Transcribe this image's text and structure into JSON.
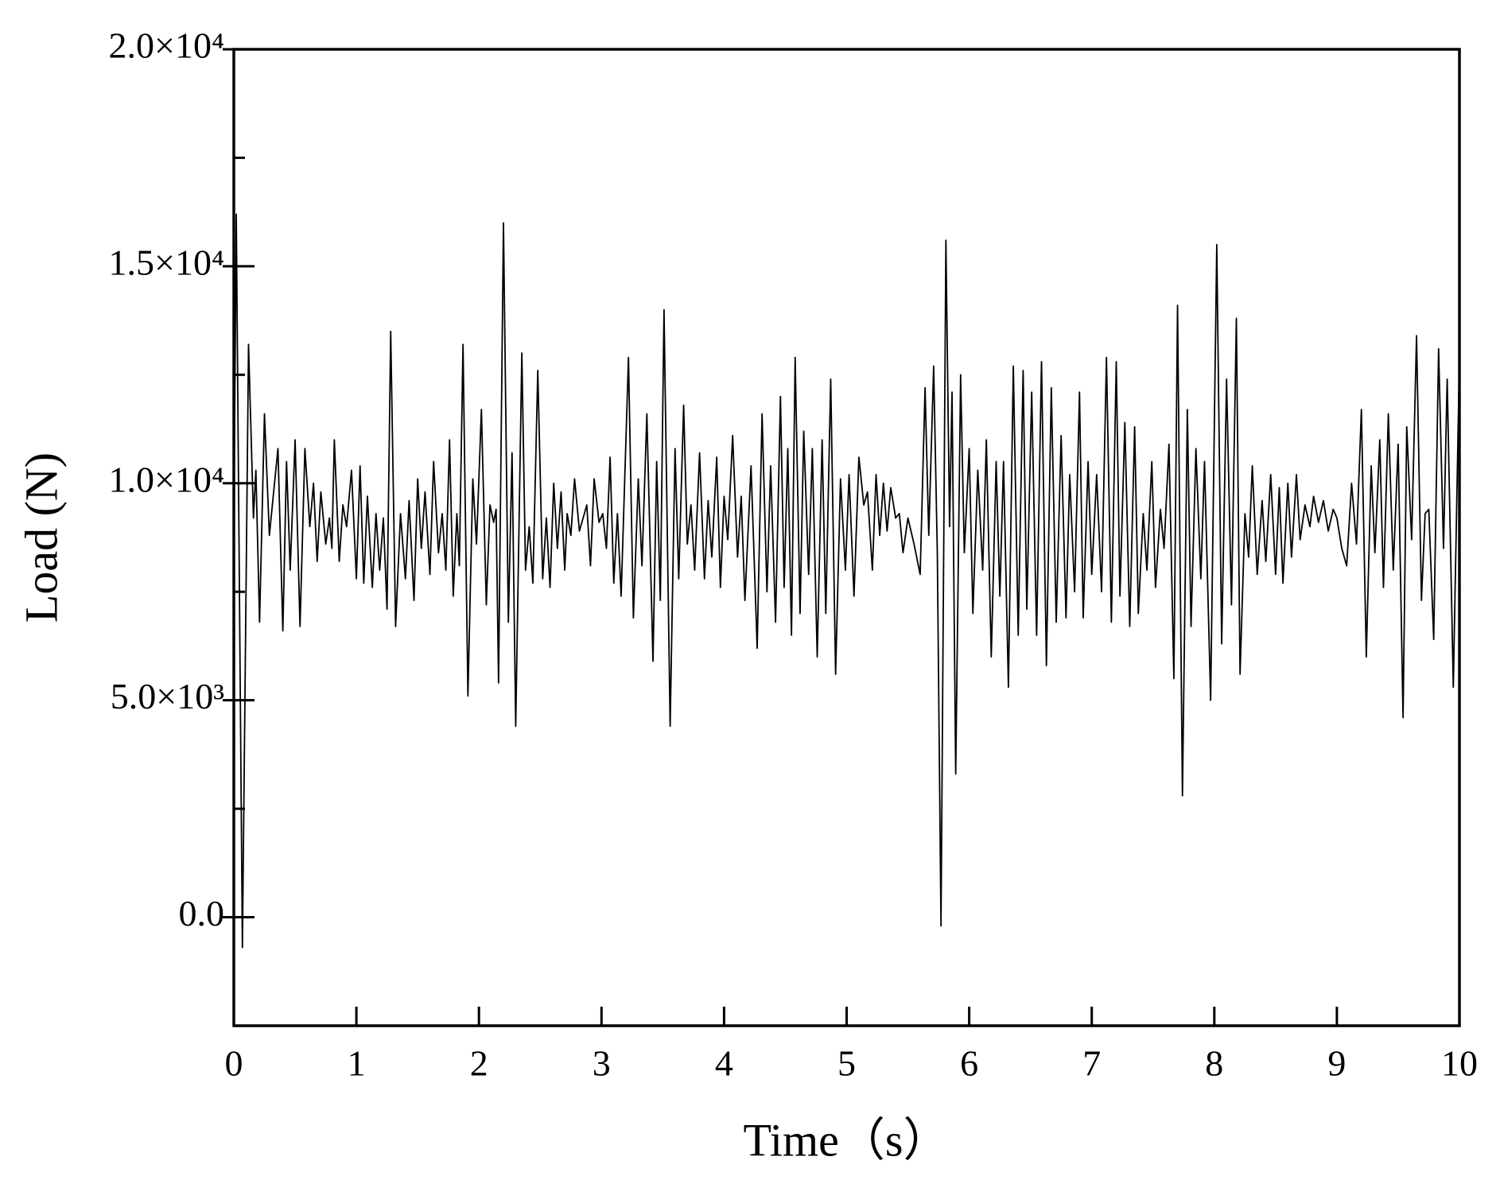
{
  "chart_data": {
    "type": "line",
    "xlabel": "Time（s）",
    "ylabel": "Load (N)",
    "xlim": [
      0,
      10
    ],
    "xticks": [
      0,
      1,
      2,
      3,
      4,
      5,
      6,
      7,
      8,
      9,
      10
    ],
    "ylim": [
      -2500,
      20000
    ],
    "yticks": [
      {
        "value": 0,
        "label": "0.0"
      },
      {
        "value": 5000,
        "label": "5.0×10³"
      },
      {
        "value": 10000,
        "label": "1.0×10⁴"
      },
      {
        "value": 15000,
        "label": "1.5×10⁴"
      },
      {
        "value": 20000,
        "label": "2.0×10⁴"
      }
    ],
    "yminorticks": [
      2500,
      7500,
      12500,
      17500
    ],
    "color": "#000000",
    "x": [
      0,
      0.02,
      0.07,
      0.12,
      0.16,
      0.18,
      0.21,
      0.25,
      0.29,
      0.36,
      0.4,
      0.43,
      0.46,
      0.5,
      0.54,
      0.58,
      0.62,
      0.65,
      0.68,
      0.71,
      0.75,
      0.78,
      0.8,
      0.82,
      0.86,
      0.89,
      0.92,
      0.96,
      1.0,
      1.03,
      1.06,
      1.09,
      1.13,
      1.16,
      1.19,
      1.22,
      1.25,
      1.28,
      1.32,
      1.36,
      1.4,
      1.43,
      1.47,
      1.5,
      1.53,
      1.56,
      1.6,
      1.63,
      1.67,
      1.7,
      1.73,
      1.76,
      1.79,
      1.82,
      1.84,
      1.87,
      1.91,
      1.95,
      1.98,
      2.02,
      2.06,
      2.09,
      2.12,
      2.14,
      2.16,
      2.2,
      2.24,
      2.27,
      2.3,
      2.35,
      2.38,
      2.41,
      2.44,
      2.48,
      2.52,
      2.55,
      2.58,
      2.61,
      2.64,
      2.67,
      2.7,
      2.72,
      2.75,
      2.78,
      2.82,
      2.85,
      2.88,
      2.91,
      2.94,
      2.98,
      3.01,
      3.04,
      3.07,
      3.1,
      3.13,
      3.16,
      3.22,
      3.26,
      3.3,
      3.33,
      3.37,
      3.42,
      3.45,
      3.48,
      3.51,
      3.56,
      3.6,
      3.63,
      3.67,
      3.7,
      3.73,
      3.76,
      3.8,
      3.84,
      3.87,
      3.9,
      3.94,
      3.97,
      4.0,
      4.03,
      4.07,
      4.11,
      4.14,
      4.17,
      4.22,
      4.27,
      4.31,
      4.35,
      4.38,
      4.42,
      4.46,
      4.49,
      4.52,
      4.55,
      4.58,
      4.62,
      4.65,
      4.69,
      4.72,
      4.76,
      4.8,
      4.83,
      4.87,
      4.91,
      4.95,
      4.99,
      5.02,
      5.06,
      5.1,
      5.14,
      5.17,
      5.21,
      5.24,
      5.27,
      5.3,
      5.33,
      5.36,
      5.4,
      5.43,
      5.46,
      5.5,
      5.55,
      5.6,
      5.64,
      5.67,
      5.71,
      5.74,
      5.77,
      5.81,
      5.84,
      5.86,
      5.89,
      5.93,
      5.96,
      6.0,
      6.03,
      6.07,
      6.11,
      6.14,
      6.18,
      6.22,
      6.25,
      6.28,
      6.32,
      6.36,
      6.4,
      6.44,
      6.47,
      6.51,
      6.55,
      6.59,
      6.63,
      6.67,
      6.71,
      6.75,
      6.79,
      6.82,
      6.86,
      6.9,
      6.93,
      6.97,
      7.0,
      7.04,
      7.08,
      7.12,
      7.16,
      7.2,
      7.23,
      7.27,
      7.31,
      7.35,
      7.38,
      7.42,
      7.45,
      7.49,
      7.52,
      7.56,
      7.59,
      7.63,
      7.67,
      7.7,
      7.74,
      7.78,
      7.81,
      7.85,
      7.89,
      7.92,
      7.97,
      8.02,
      8.06,
      8.1,
      8.14,
      8.18,
      8.21,
      8.25,
      8.28,
      8.31,
      8.35,
      8.39,
      8.42,
      8.46,
      8.5,
      8.53,
      8.56,
      8.6,
      8.63,
      8.67,
      8.7,
      8.74,
      8.78,
      8.81,
      8.85,
      8.89,
      8.93,
      8.97,
      9.0,
      9.04,
      9.08,
      9.12,
      9.16,
      9.2,
      9.24,
      9.28,
      9.31,
      9.35,
      9.38,
      9.42,
      9.46,
      9.5,
      9.54,
      9.57,
      9.61,
      9.65,
      9.69,
      9.72,
      9.75,
      9.79,
      9.83,
      9.87,
      9.9,
      9.95,
      10.0
    ],
    "values": [
      9000,
      16200,
      -700,
      13200,
      9200,
      10300,
      6800,
      11600,
      8800,
      10800,
      6600,
      10500,
      8000,
      11000,
      6700,
      10800,
      9000,
      10000,
      8200,
      9800,
      8600,
      9200,
      8500,
      11000,
      8200,
      9500,
      9000,
      10300,
      7800,
      10400,
      7700,
      9700,
      7600,
      9300,
      8000,
      9200,
      7100,
      13500,
      6700,
      9300,
      7800,
      9600,
      7300,
      10100,
      8500,
      9800,
      7900,
      10500,
      8400,
      9300,
      8000,
      11000,
      7400,
      9300,
      8100,
      13200,
      5100,
      10100,
      8600,
      11700,
      7200,
      9500,
      9100,
      9400,
      5400,
      16000,
      6800,
      10700,
      4400,
      13000,
      8000,
      9000,
      7700,
      12600,
      7800,
      9200,
      7600,
      10000,
      8500,
      9800,
      8000,
      9300,
      8800,
      10100,
      8900,
      9200,
      9500,
      8100,
      10100,
      9100,
      9300,
      8500,
      10600,
      7700,
      9300,
      7400,
      12900,
      6900,
      10100,
      8100,
      11600,
      5900,
      10500,
      7300,
      14000,
      4400,
      10800,
      7800,
      11800,
      8600,
      9500,
      8000,
      10700,
      7800,
      9600,
      8300,
      10600,
      7600,
      9700,
      8700,
      11100,
      8300,
      9700,
      7300,
      10400,
      6200,
      11600,
      7500,
      10400,
      6800,
      12000,
      7600,
      10800,
      6500,
      12900,
      7000,
      11200,
      7900,
      10800,
      6000,
      11000,
      7000,
      12400,
      5600,
      10100,
      8000,
      10200,
      7400,
      10600,
      9500,
      9800,
      8000,
      10200,
      8800,
      10000,
      8900,
      9900,
      9200,
      9300,
      8400,
      9200,
      8600,
      7900,
      12200,
      8800,
      12700,
      8400,
      -200,
      15600,
      9000,
      12100,
      3300,
      12500,
      8400,
      10800,
      7000,
      10300,
      8000,
      11000,
      6000,
      10500,
      7400,
      10500,
      5300,
      12700,
      6500,
      12600,
      7100,
      12100,
      6500,
      12800,
      5800,
      12200,
      6800,
      11100,
      6900,
      10200,
      7500,
      12100,
      6900,
      10500,
      7900,
      10200,
      7500,
      12900,
      6800,
      12800,
      7400,
      11400,
      6700,
      11300,
      7000,
      9300,
      8000,
      10500,
      7600,
      9400,
      8500,
      10900,
      5500,
      14100,
      2800,
      11700,
      6700,
      10800,
      7800,
      10500,
      5000,
      15500,
      6300,
      12400,
      7200,
      13800,
      5600,
      9300,
      8300,
      10400,
      7900,
      9600,
      8200,
      10200,
      7900,
      9900,
      7700,
      10000,
      8300,
      10200,
      8700,
      9500,
      9000,
      9700,
      9100,
      9600,
      8900,
      9400,
      9200,
      8500,
      8100,
      10000,
      8600,
      11700,
      6000,
      10400,
      8400,
      11000,
      7600,
      11600,
      8000,
      10900,
      4600,
      11300,
      8700,
      13400,
      7300,
      9300,
      9400,
      6400,
      13100,
      8500,
      12400,
      5300,
      12900
    ]
  }
}
